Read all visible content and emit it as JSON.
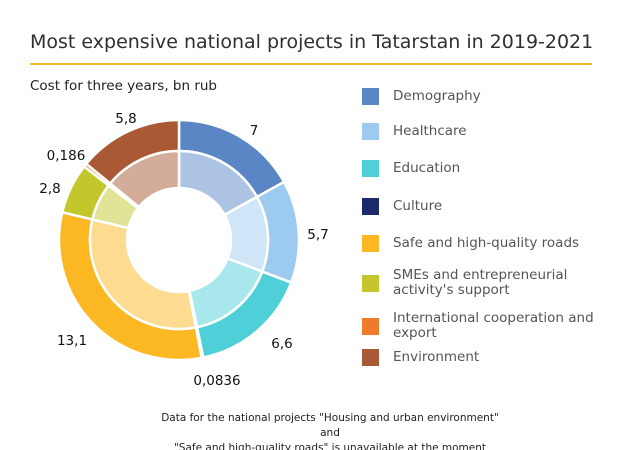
{
  "title": "Most expensive national projects in Tatarstan in 2019-2021",
  "footer": {
    "line1": "Data for the national projects \"Housing and urban environment\" and",
    "line2": "\"Safe and high-quality roads\" is unavailable at the moment"
  },
  "accent_color": "#f5b731",
  "chart_data": {
    "type": "pie",
    "subtype": "donut",
    "title": "Most expensive national projects in Tatarstan in 2019-2021",
    "subtitle": "Cost for three years, bn rub",
    "legend_position": "right",
    "categories": [
      "Demography",
      "Healthcare",
      "Education",
      "Culture",
      "Safe and high-quality roads",
      "SMEs and entrepreneurial activity's support",
      "International cooperation and export",
      "Environment"
    ],
    "values": [
      7,
      5.7,
      6.6,
      0.0836,
      13.1,
      2.8,
      0.186,
      5.8
    ],
    "labels": [
      "7",
      "5,7",
      "6,6",
      "0,0836",
      "13,1",
      "2,8",
      "0,186",
      "5,8"
    ],
    "colors": [
      "#5b86c5",
      "#9dcbef",
      "#4fd0d8",
      "#1c2a6b",
      "#fbb822",
      "#c3c72c",
      "#f07a2c",
      "#a95a34"
    ],
    "inner_colors": [
      "#adc3e3",
      "#cfe6f8",
      "#a8e8ec",
      "#8e95b5",
      "#fddc91",
      "#e1e396",
      "#f7bd96",
      "#d4ad9a"
    ]
  }
}
